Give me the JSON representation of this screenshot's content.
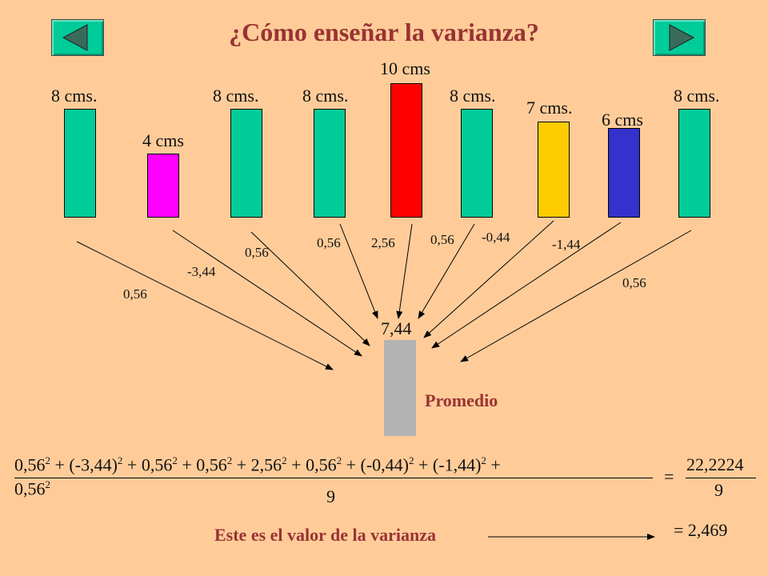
{
  "title": "¿Cómo enseñar la varianza?",
  "nav": {
    "prev_icon": "left-triangle-icon",
    "next_icon": "right-triangle-icon",
    "button_color": "#00CC99"
  },
  "bars": [
    {
      "label": "8 cms.",
      "value": 8,
      "color": "#00CC99",
      "deviation": "0,56"
    },
    {
      "label": "4 cms",
      "value": 4,
      "color": "#FF00FF",
      "deviation": "-3,44"
    },
    {
      "label": "8 cms.",
      "value": 8,
      "color": "#00CC99",
      "deviation": "0,56"
    },
    {
      "label": "8 cms.",
      "value": 8,
      "color": "#00CC99",
      "deviation": "0,56"
    },
    {
      "label": "10 cms",
      "value": 10,
      "color": "#FF0000",
      "deviation": "2,56"
    },
    {
      "label": "8 cms.",
      "value": 8,
      "color": "#00CC99",
      "deviation": "0,56"
    },
    {
      "label": "7 cms.",
      "value": 7,
      "color": "#FFCC00",
      "deviation": "-0,44"
    },
    {
      "label": "6 cms",
      "value": 6,
      "color": "#3333CC",
      "deviation": "-1,44"
    },
    {
      "label": "8 cms.",
      "value": 8,
      "color": "#00CC99",
      "deviation": "0,56"
    }
  ],
  "mean": {
    "value": "7,44",
    "label": "Promedio",
    "color": "#B3B3B3"
  },
  "formula": {
    "numerator_line1": [
      {
        "base": "0,56",
        "exp": "2"
      },
      {
        "text": " + "
      },
      {
        "base": "(-3,44)",
        "exp": "2"
      },
      {
        "text": " + "
      },
      {
        "base": "0,56",
        "exp": "2"
      },
      {
        "text": " + "
      },
      {
        "base": "0,56",
        "exp": "2"
      },
      {
        "text": " + "
      },
      {
        "base": "2,56",
        "exp": "2"
      },
      {
        "text": " + "
      },
      {
        "base": "0,56",
        "exp": "2"
      },
      {
        "text": " + "
      },
      {
        "base": "(-0,44)",
        "exp": "2"
      },
      {
        "text": " + "
      },
      {
        "base": "(-1,44)",
        "exp": "2"
      },
      {
        "text": " +"
      }
    ],
    "numerator_line2": [
      {
        "base": "0,56",
        "exp": "2"
      }
    ],
    "denominator": "9",
    "equals": "=",
    "result_numerator": "22,2224",
    "result_denominator": "9",
    "final": "= 2,469"
  },
  "conclusion": "Este es el valor de la varianza",
  "colors": {
    "background": "#FFCC99",
    "title": "#993333"
  }
}
